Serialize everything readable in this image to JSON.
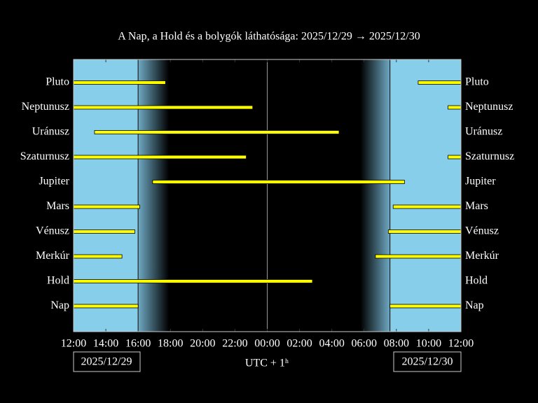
{
  "chart_data": {
    "type": "timeline",
    "title": "A Nap, a Hold és a bolygók láthatósága: 2025/12/29 → 2025/12/30",
    "xlabel": "UTC + 1ʰ",
    "dates": [
      "2025/12/29",
      "2025/12/30"
    ],
    "xlim": [
      12,
      36
    ],
    "xticks": [
      {
        "value": 12,
        "label": "12:00"
      },
      {
        "value": 14,
        "label": "14:00"
      },
      {
        "value": 16,
        "label": "16:00"
      },
      {
        "value": 18,
        "label": "18:00"
      },
      {
        "value": 20,
        "label": "20:00"
      },
      {
        "value": 22,
        "label": "22:00"
      },
      {
        "value": 24,
        "label": "00:00"
      },
      {
        "value": 26,
        "label": "02:00"
      },
      {
        "value": 28,
        "label": "04:00"
      },
      {
        "value": 30,
        "label": "06:00"
      },
      {
        "value": 32,
        "label": "08:00"
      },
      {
        "value": 34,
        "label": "10:00"
      },
      {
        "value": 36,
        "label": "12:00"
      }
    ],
    "color": "#ffff00",
    "series": [
      {
        "name": "Pluto",
        "intervals": [
          [
            12,
            17.7
          ],
          [
            33.35,
            36
          ]
        ]
      },
      {
        "name": "Neptunusz",
        "intervals": [
          [
            12,
            23.1
          ],
          [
            35.2,
            36
          ]
        ]
      },
      {
        "name": "Uránusz",
        "intervals": [
          [
            13.3,
            28.45
          ]
        ]
      },
      {
        "name": "Szaturnusz",
        "intervals": [
          [
            12,
            22.7
          ],
          [
            35.2,
            36
          ]
        ]
      },
      {
        "name": "Jupiter",
        "intervals": [
          [
            16.9,
            32.5
          ]
        ]
      },
      {
        "name": "Mars",
        "intervals": [
          [
            12,
            16.1
          ],
          [
            31.8,
            36
          ]
        ]
      },
      {
        "name": "Vénusz",
        "intervals": [
          [
            12,
            15.8
          ],
          [
            31.5,
            36
          ]
        ]
      },
      {
        "name": "Merkúr",
        "intervals": [
          [
            12,
            15.0
          ],
          [
            30.7,
            36
          ]
        ]
      },
      {
        "name": "Hold",
        "intervals": [
          [
            12,
            26.8
          ]
        ]
      },
      {
        "name": "Nap",
        "intervals": [
          [
            12,
            16.0
          ],
          [
            31.6,
            36
          ]
        ]
      }
    ]
  }
}
